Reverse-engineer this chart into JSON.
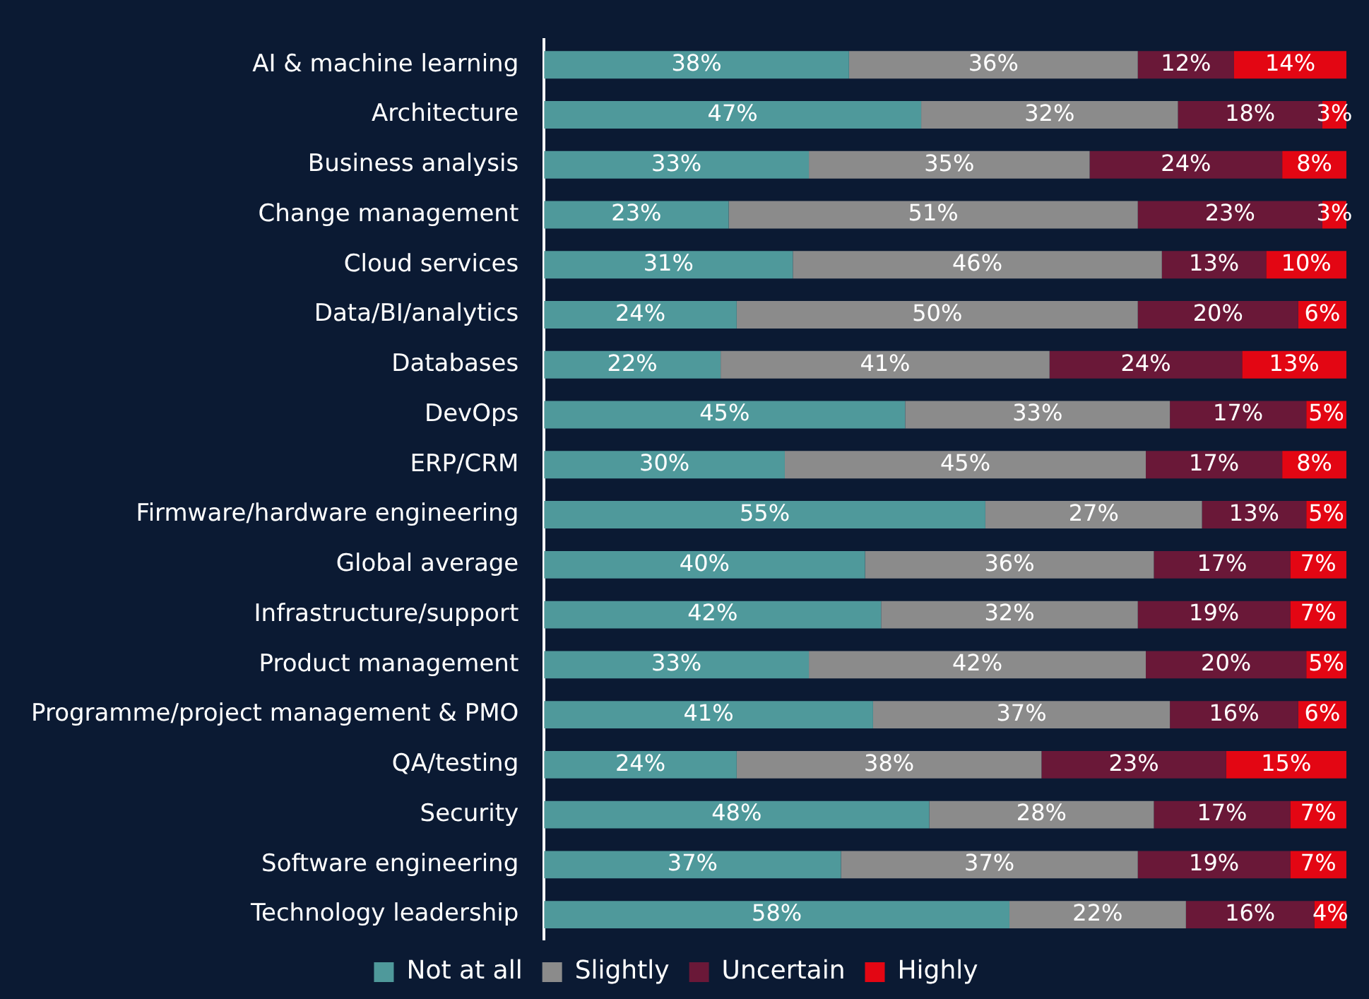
{
  "chart_data": {
    "type": "bar",
    "orientation": "horizontal",
    "stacked": true,
    "legend": "bottom",
    "categories": [
      "AI & machine learning",
      "Architecture",
      "Business analysis",
      "Change management",
      "Cloud services",
      "Data/BI/analytics",
      "Databases",
      "DevOps",
      "ERP/CRM",
      "Firmware/hardware engineering",
      "Global average",
      "Infrastructure/support",
      "Product management",
      "Programme/project management & PMO",
      "QA/testing",
      "Security",
      "Software engineering",
      "Technology leadership"
    ],
    "series": [
      {
        "name": "Not at all",
        "color": "#4f999b",
        "values": [
          38,
          47,
          33,
          23,
          31,
          24,
          22,
          45,
          30,
          55,
          40,
          42,
          33,
          41,
          24,
          48,
          37,
          58
        ],
        "value_labels": [
          "38%",
          "47%",
          "33%",
          "23%",
          "31%",
          "24%",
          "22%",
          "45%",
          "30%",
          "55%",
          "40%",
          "42%",
          "33%",
          "41%",
          "24%",
          "48%",
          "37%",
          "58%"
        ]
      },
      {
        "name": "Slightly",
        "color": "#8b8b8b",
        "values": [
          36,
          32,
          35,
          51,
          46,
          50,
          41,
          33,
          45,
          27,
          36,
          32,
          42,
          37,
          38,
          28,
          37,
          22
        ],
        "value_labels": [
          "36%",
          "32%",
          "35%",
          "51%",
          "46%",
          "50%",
          "41%",
          "33%",
          "45%",
          "27%",
          "36%",
          "32%",
          "42%",
          "37%",
          "38%",
          "28%",
          "37%",
          "22%"
        ]
      },
      {
        "name": "Uncertain",
        "color": "#6a1838",
        "values": [
          12,
          18,
          24,
          23,
          13,
          20,
          24,
          17,
          17,
          13,
          17,
          19,
          20,
          16,
          23,
          17,
          19,
          16
        ],
        "value_labels": [
          "12%",
          "18%",
          "24%",
          "23%",
          "13%",
          "20%",
          "24%",
          "17%",
          "17%",
          "13%",
          "17%",
          "19%",
          "20%",
          "16%",
          "23%",
          "17%",
          "19%",
          "16%"
        ]
      },
      {
        "name": "Highly",
        "color": "#e30613",
        "values": [
          14,
          3,
          8,
          3,
          10,
          6,
          13,
          5,
          8,
          5,
          7,
          7,
          5,
          6,
          15,
          7,
          7,
          4
        ],
        "value_labels": [
          "14%",
          "3%",
          "8%",
          "3%",
          "10%",
          "6%",
          "13%",
          "5%",
          "8%",
          "5%",
          "7%",
          "7%",
          "5%",
          "6%",
          "15%",
          "7%",
          "7%",
          "4%"
        ]
      }
    ]
  }
}
